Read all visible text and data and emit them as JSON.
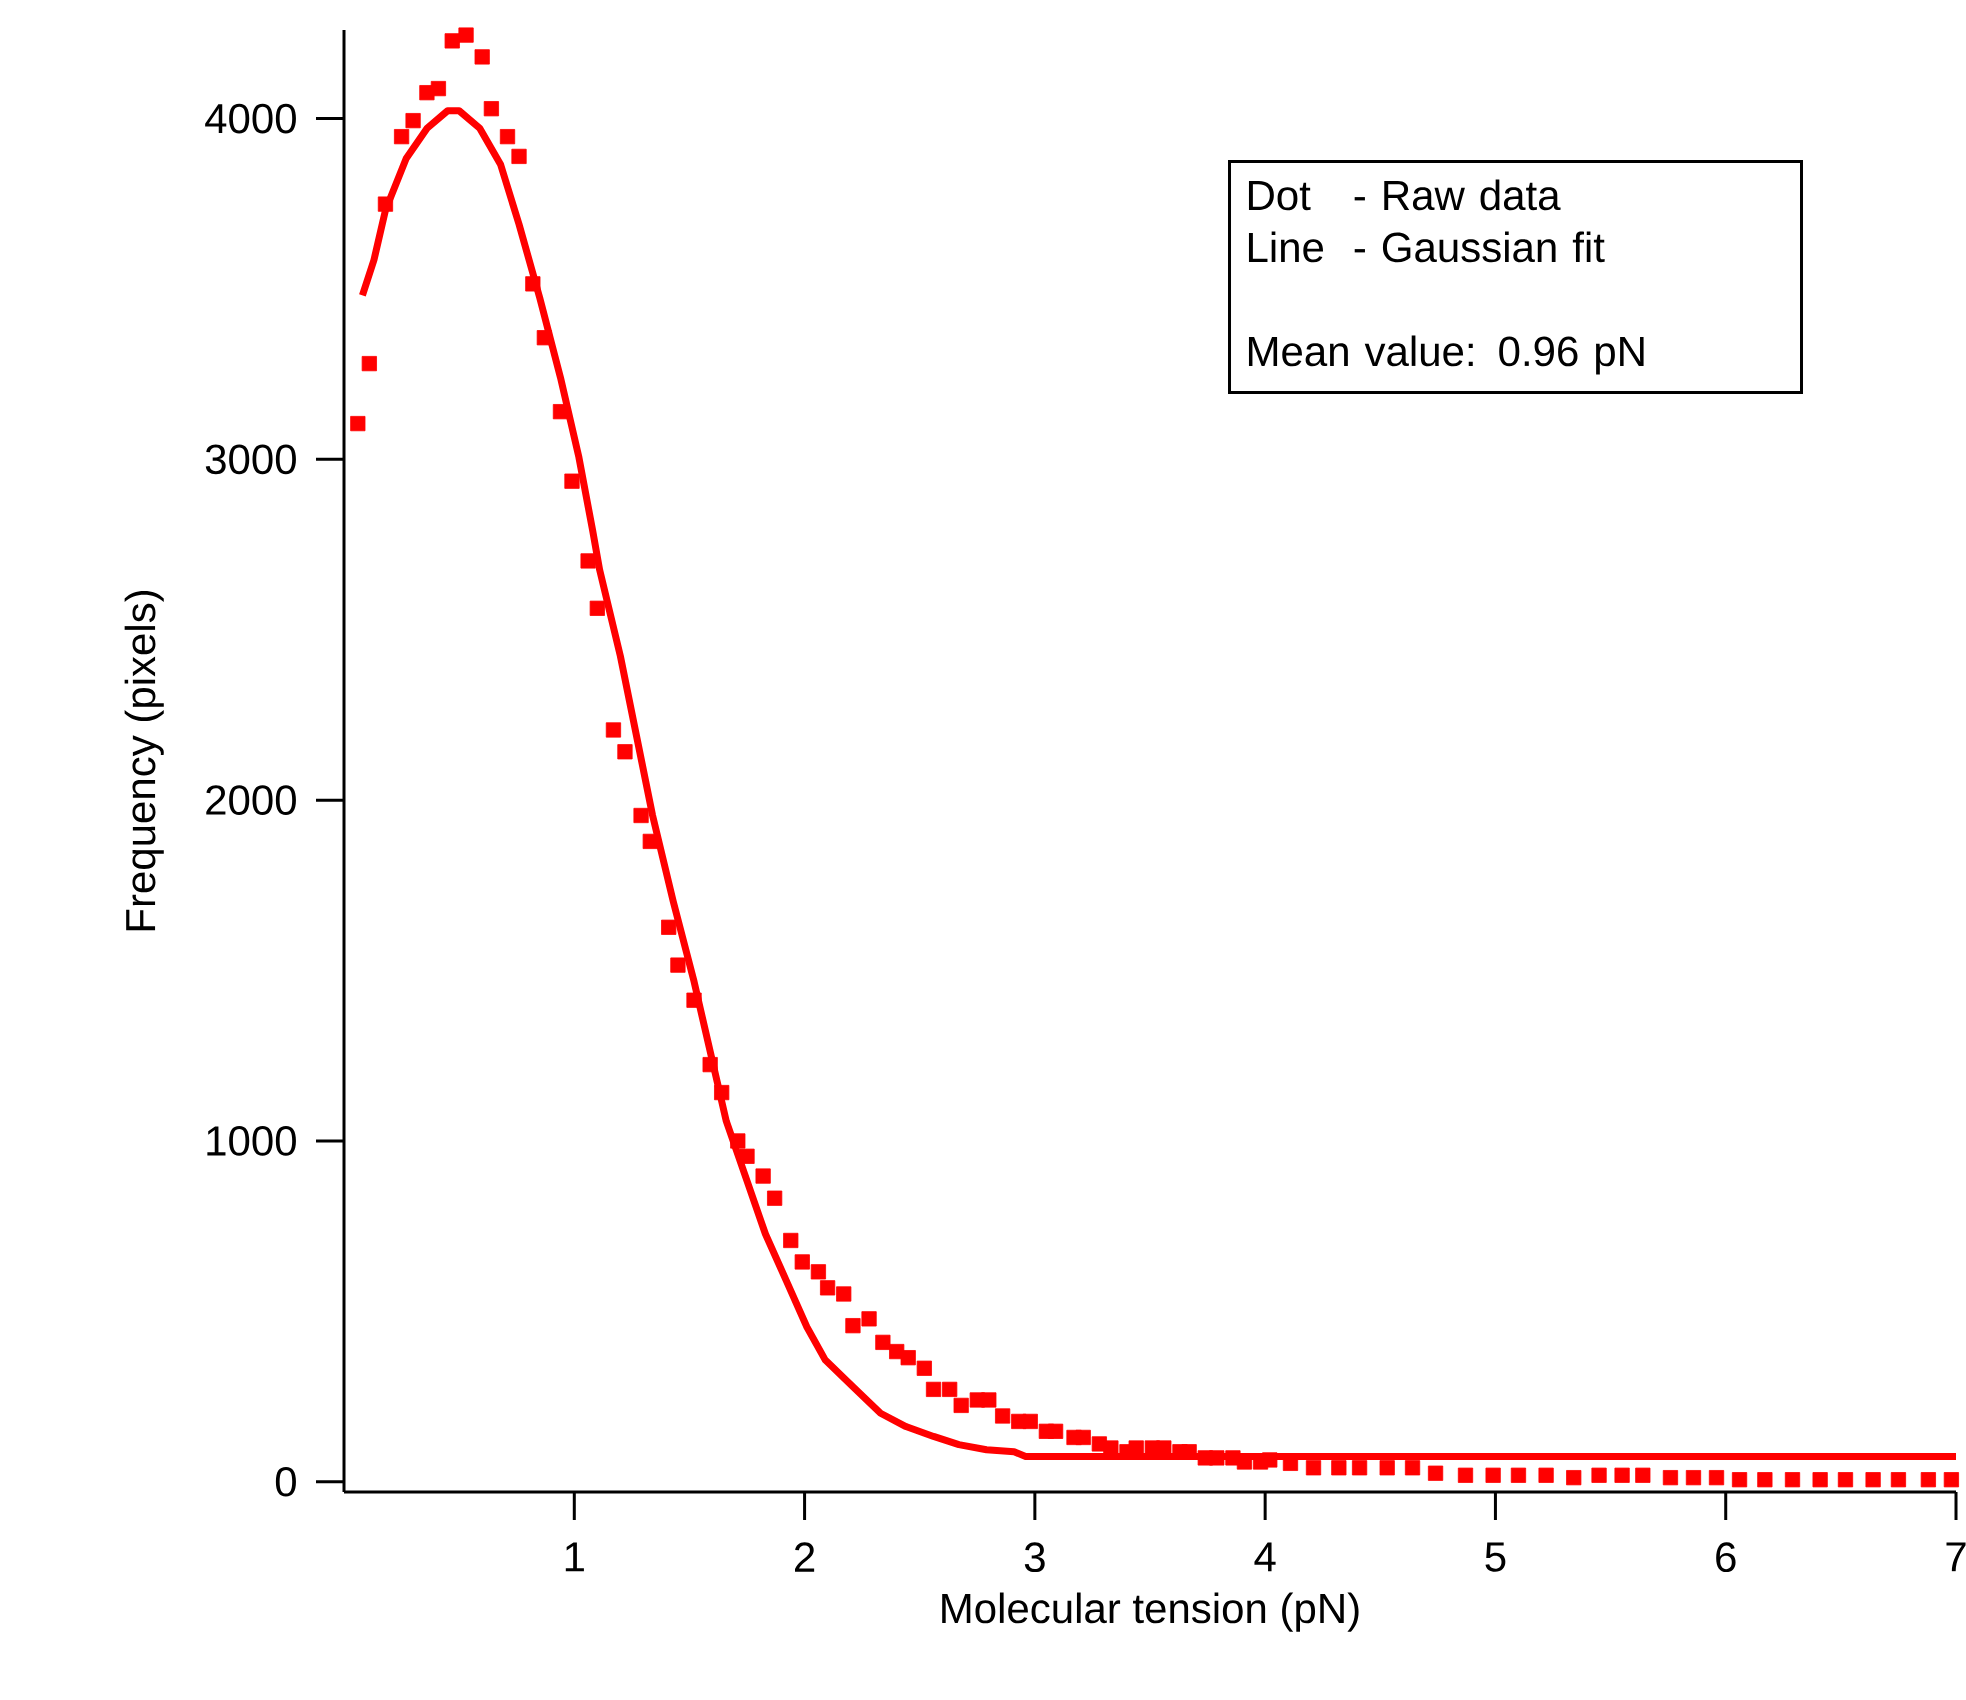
{
  "chart_data": {
    "type": "scatter",
    "xlabel": "Molecular tension (pN)",
    "ylabel": "Frequency (pixels)",
    "annotations": [
      "Dot   - Raw data",
      "Line  - Gaussian fit",
      "Mean value: 0.96 pN"
    ],
    "xlim": [
      0,
      7
    ],
    "ylim": [
      -30,
      4260
    ],
    "xticks": [
      1,
      2,
      3,
      4,
      5,
      6,
      7
    ],
    "yticks": [
      0,
      1000,
      2000,
      3000,
      4000
    ],
    "series": [
      {
        "marker": "square",
        "color": "#ff0000",
        "x": [
          0.06,
          0.11,
          0.18,
          0.25,
          0.3,
          0.36,
          0.41,
          0.47,
          0.53,
          0.6,
          0.64,
          0.71,
          0.76,
          0.82,
          0.87,
          0.94,
          0.99,
          1.06,
          1.1,
          1.17,
          1.22,
          1.29,
          1.33,
          1.41,
          1.45,
          1.52,
          1.59,
          1.64,
          1.71,
          1.75,
          1.82,
          1.87,
          1.94,
          1.99,
          2.06,
          2.1,
          2.17,
          2.21,
          2.28,
          2.34,
          2.4,
          2.45,
          2.52,
          2.56,
          2.63,
          2.68,
          2.75,
          2.8,
          2.86,
          2.93,
          2.98,
          3.05,
          3.09,
          3.17,
          3.21,
          3.28,
          3.33,
          3.4,
          3.44,
          3.51,
          3.56,
          3.63,
          3.67,
          3.74,
          3.79,
          3.86,
          3.91,
          3.98,
          4.02,
          4.11,
          4.21,
          4.32,
          4.41,
          4.53,
          4.64,
          4.74,
          4.87,
          4.99,
          5.1,
          5.22,
          5.34,
          5.45,
          5.55,
          5.64,
          5.76,
          5.86,
          5.96,
          6.06,
          6.17,
          6.29,
          6.41,
          6.52,
          6.64,
          6.75,
          6.88,
          6.98
        ],
        "values": [
          3105,
          3281,
          3749,
          3947,
          3994,
          4076,
          4088,
          4228,
          4245,
          4181,
          4029,
          3947,
          3889,
          3515,
          3357,
          3140,
          2936,
          2702,
          2563,
          2206,
          2142,
          1955,
          1879,
          1627,
          1516,
          1413,
          1224,
          1142,
          1000,
          955,
          897,
          832,
          708,
          645,
          616,
          569,
          551,
          458,
          478,
          409,
          382,
          364,
          333,
          271,
          271,
          224,
          240,
          240,
          193,
          177,
          177,
          148,
          148,
          130,
          130,
          111,
          99,
          88,
          99,
          99,
          99,
          88,
          88,
          70,
          70,
          70,
          58,
          58,
          64,
          54,
          41,
          41,
          41,
          41,
          41,
          25,
          19,
          19,
          19,
          19,
          12,
          19,
          19,
          19,
          12,
          12,
          12,
          6,
          6,
          6,
          6,
          6,
          6,
          6,
          6,
          6
        ]
      },
      {
        "type": "line",
        "color": "#ff0000",
        "x": [
          0.08,
          0.13,
          0.18,
          0.27,
          0.36,
          0.45,
          0.5,
          0.59,
          0.68,
          0.76,
          0.85,
          0.94,
          1.02,
          1.08,
          1.11,
          1.2,
          1.27,
          1.34,
          1.43,
          1.52,
          1.62,
          1.66,
          1.75,
          1.83,
          1.92,
          2.01,
          2.09,
          2.21,
          2.33,
          2.44,
          2.56,
          2.67,
          2.79,
          2.91,
          2.96,
          7.0
        ],
        "values": [
          3481,
          3585,
          3731,
          3883,
          3971,
          4023,
          4023,
          3971,
          3865,
          3690,
          3474,
          3240,
          3006,
          2790,
          2676,
          2423,
          2189,
          1955,
          1702,
          1468,
          1175,
          1058,
          883,
          727,
          591,
          454,
          357,
          279,
          201,
          162,
          133,
          109,
          94,
          88,
          74,
          74
        ]
      }
    ]
  }
}
